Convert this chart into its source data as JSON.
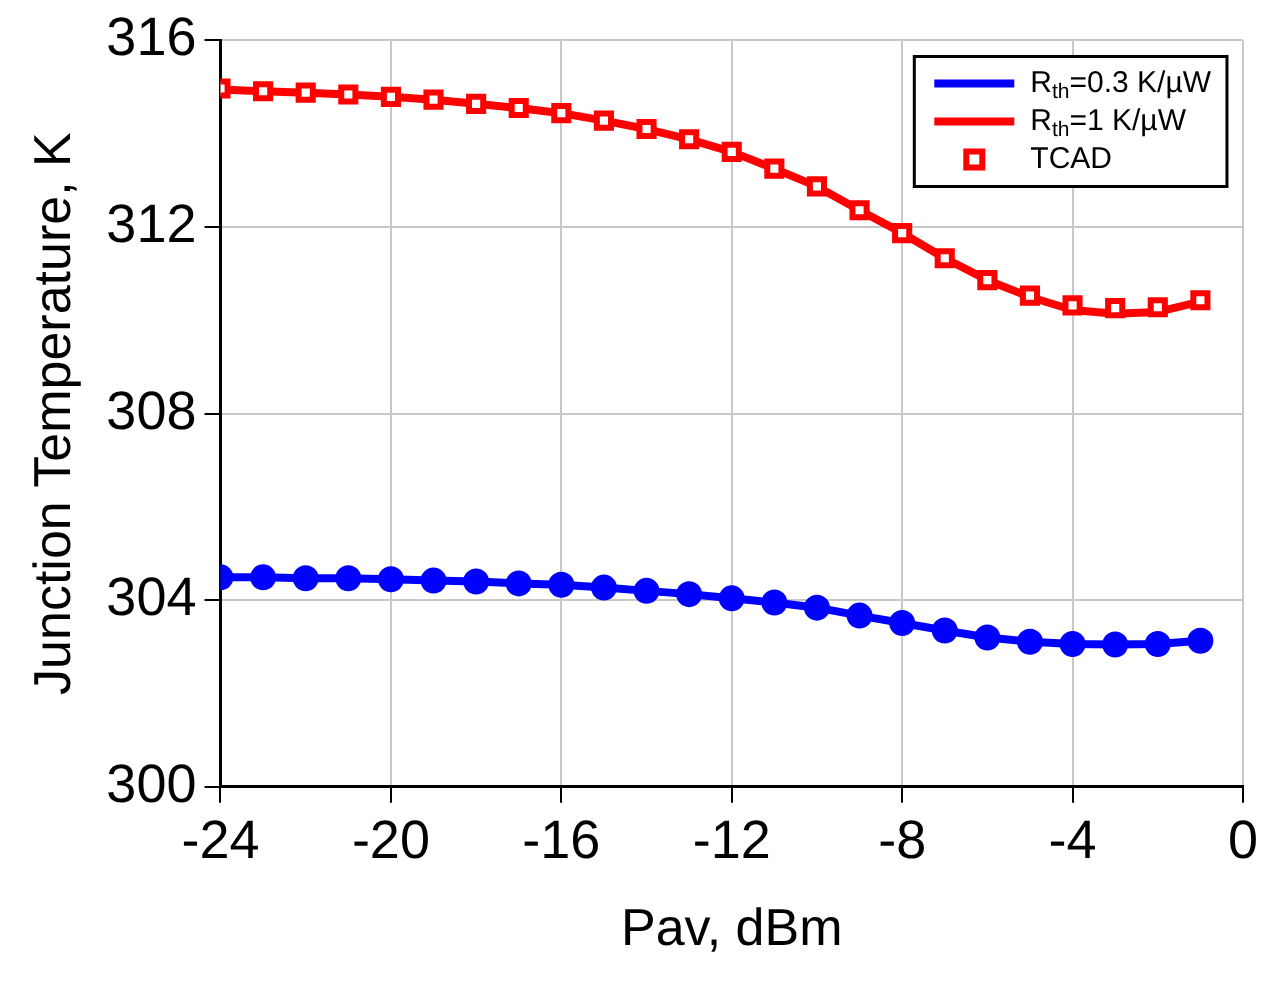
{
  "chart_data": {
    "type": "line",
    "xlabel": "Pav, dBm",
    "ylabel": "Junction Temperature, K",
    "x": [
      -24,
      -23,
      -22,
      -21,
      -20,
      -19,
      -18,
      -17,
      -16,
      -15,
      -14,
      -13,
      -12,
      -11,
      -10,
      -9,
      -8,
      -7,
      -6,
      -5,
      -4,
      -3,
      -2,
      -1
    ],
    "series": [
      {
        "name": "R$_{th}$=0.3 K/µW",
        "color": "#0000ff",
        "values": [
          304.49,
          304.49,
          304.47,
          304.47,
          304.45,
          304.42,
          304.4,
          304.36,
          304.33,
          304.27,
          304.2,
          304.13,
          304.04,
          303.95,
          303.84,
          303.67,
          303.51,
          303.35,
          303.2,
          303.11,
          303.06,
          303.05,
          303.06,
          303.13
        ]
      },
      {
        "name": "R$_{th}$=1 K/µW",
        "color": "#ff0000",
        "values": [
          314.95,
          314.91,
          314.88,
          314.84,
          314.79,
          314.73,
          314.64,
          314.55,
          314.44,
          314.28,
          314.1,
          313.88,
          313.61,
          313.25,
          312.87,
          312.36,
          311.87,
          311.33,
          310.86,
          310.5,
          310.22,
          310.14,
          310.18,
          310.4
        ]
      },
      {
        "type": "scatter",
        "color": "#0000ff",
        "marker": "circle",
        "values": [
          304.49,
          304.49,
          304.47,
          304.47,
          304.45,
          304.42,
          304.4,
          304.36,
          304.33,
          304.27,
          304.2,
          304.13,
          304.04,
          303.95,
          303.84,
          303.67,
          303.51,
          303.35,
          303.2,
          303.11,
          303.06,
          303.05,
          303.06,
          303.13
        ]
      },
      {
        "name": "TCAD",
        "type": "scatter",
        "color": "#ff0000",
        "marker": "square",
        "values": [
          314.97,
          314.91,
          314.88,
          314.84,
          314.79,
          314.73,
          314.64,
          314.55,
          314.44,
          314.28,
          314.1,
          313.88,
          313.61,
          313.25,
          312.87,
          312.36,
          311.87,
          311.33,
          310.86,
          310.53,
          310.32,
          310.26,
          310.28,
          310.43
        ]
      }
    ],
    "xlim": [
      -24,
      0
    ],
    "xticks": [
      -24,
      -20,
      -16,
      -12,
      -8,
      -4,
      0
    ],
    "ylim": [
      300,
      316
    ],
    "yticks": [
      300,
      304,
      308,
      312,
      316
    ],
    "grid": true,
    "legend": "top right"
  }
}
